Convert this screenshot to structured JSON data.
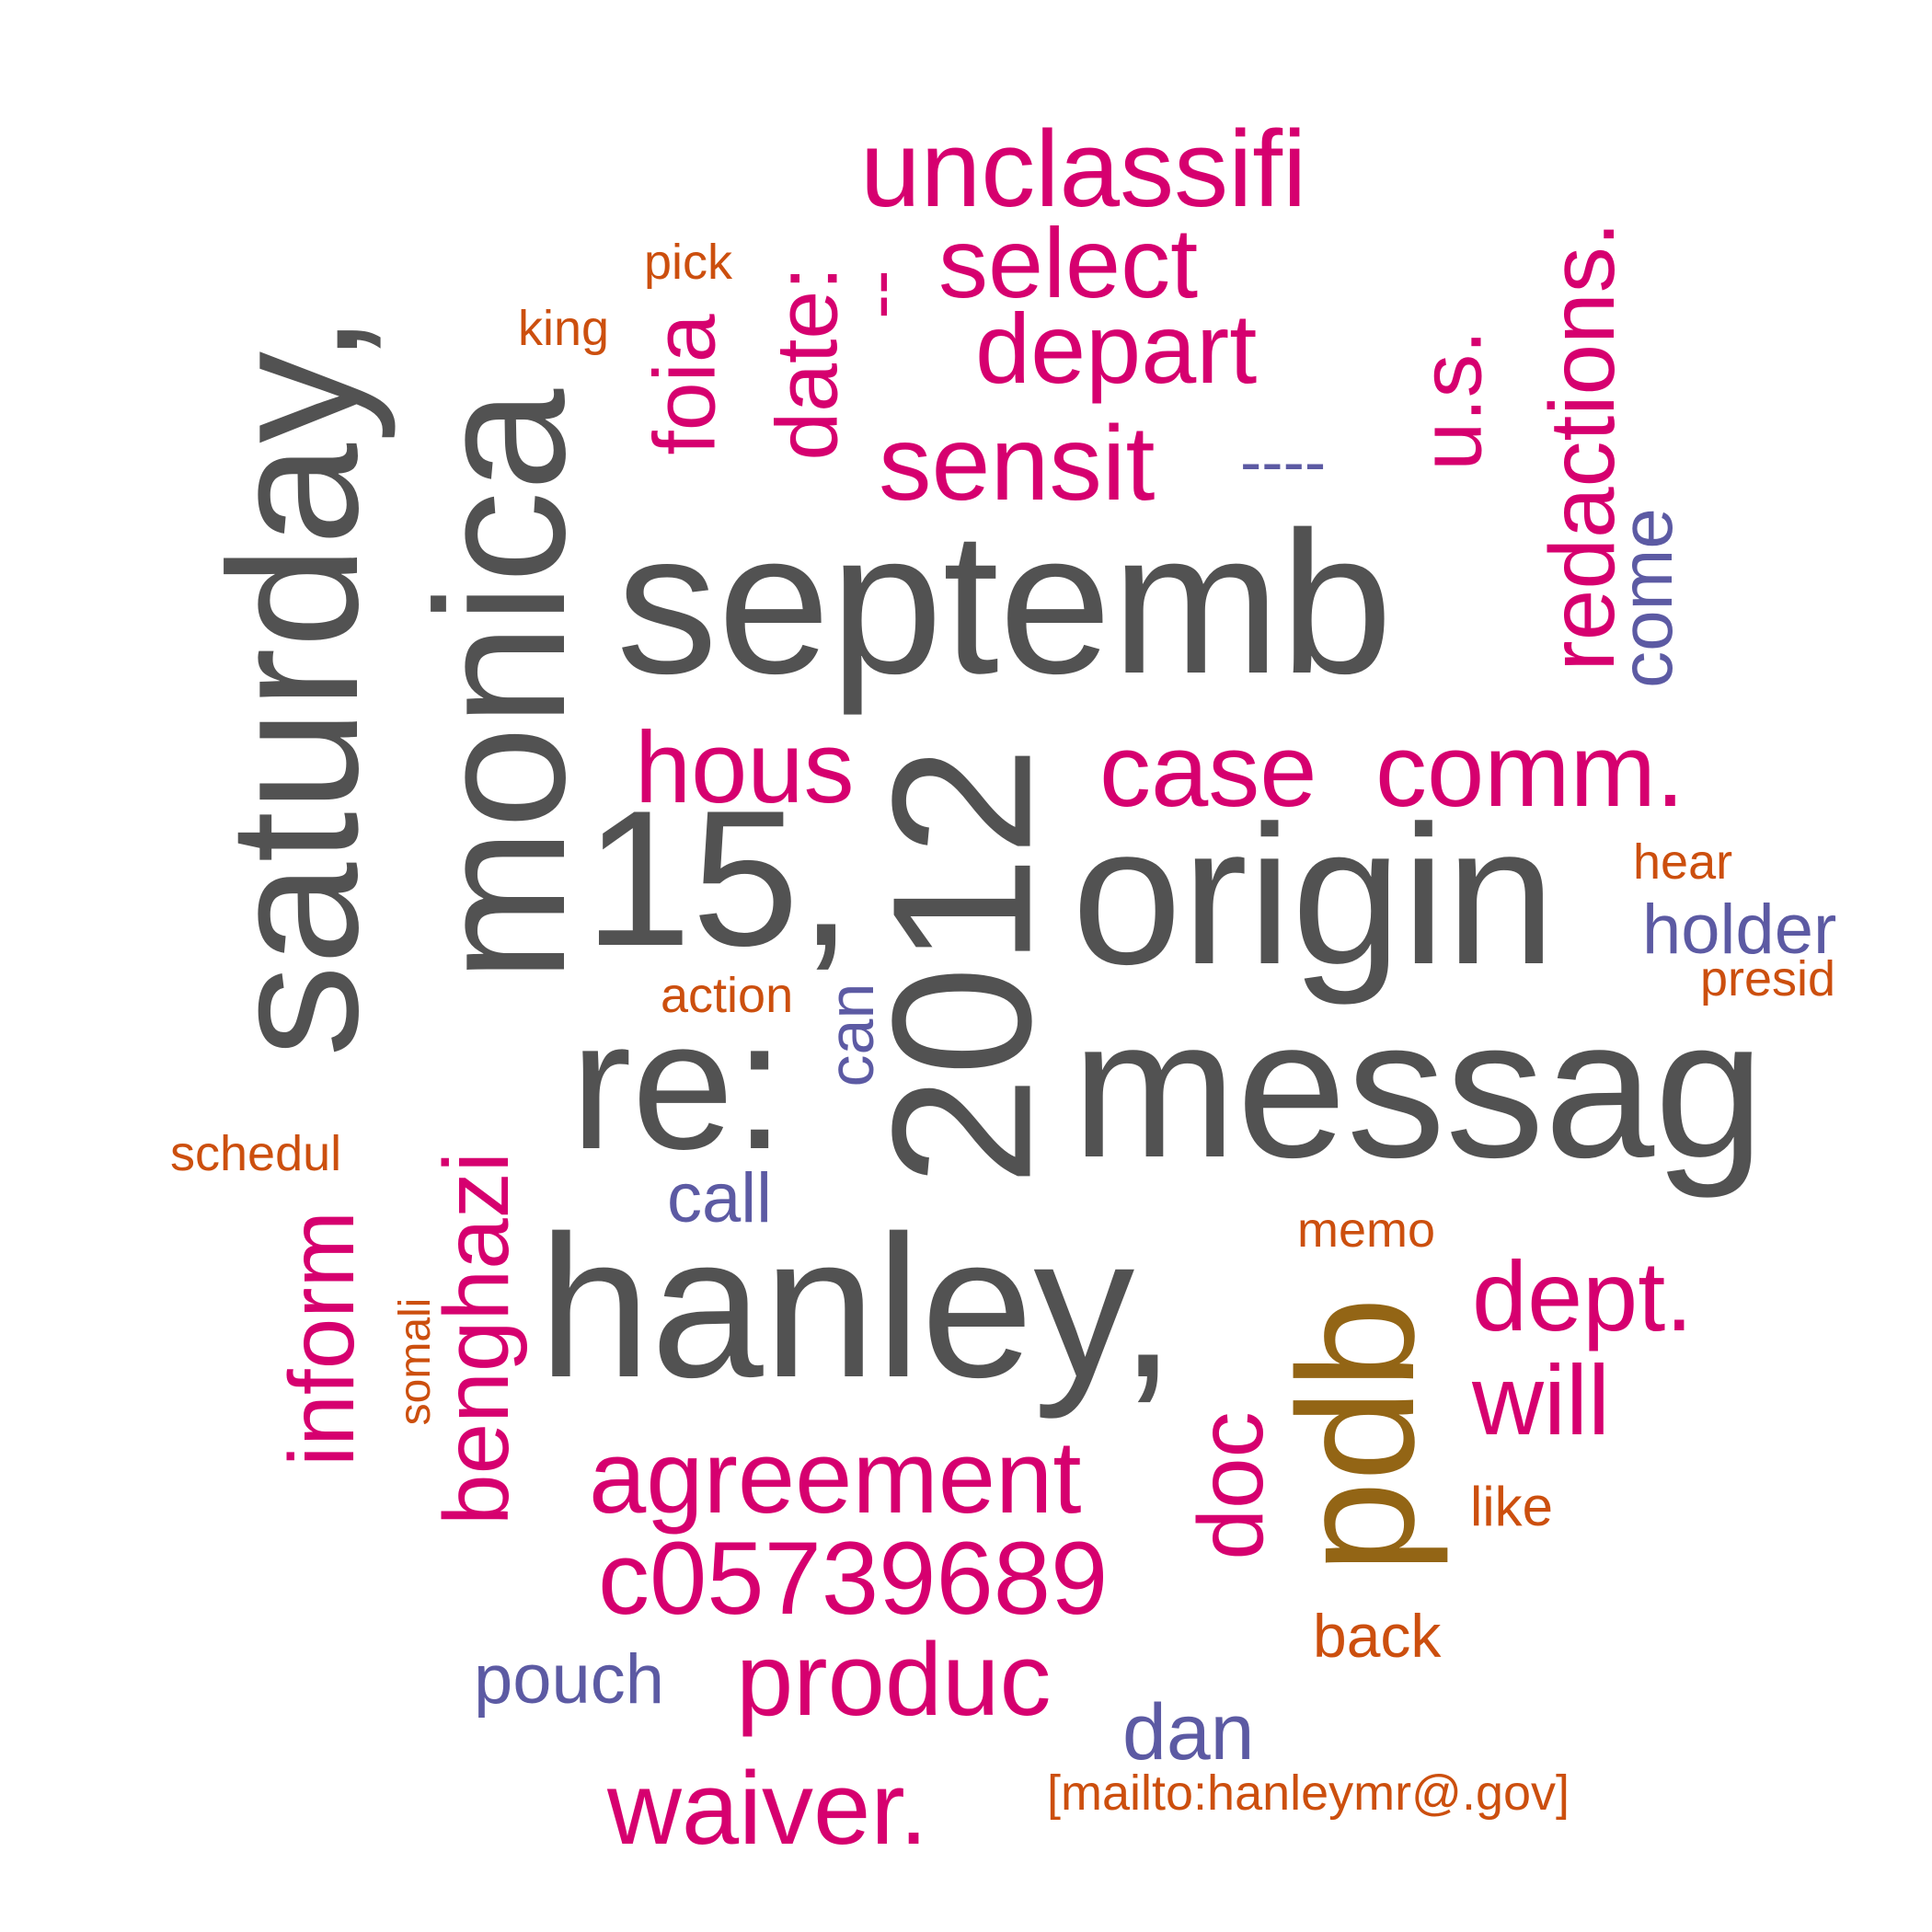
{
  "cloud": {
    "palette": {
      "gray": "#525252",
      "pink": "#d6006f",
      "gold": "#936515",
      "purple": "#5c5aa3",
      "orange": "#cc4f0e"
    },
    "words": {
      "septemb": "septemb",
      "origin": "origin",
      "messag": "messag",
      "hanley": "hanley,",
      "saturday": "saturday,",
      "monica": "monica",
      "y2012": "2012",
      "fifteen": "15,",
      "re": "re:",
      "pdb": "pdb",
      "unclassifi": "unclassifi",
      "select": "select",
      "depart": "depart",
      "sensit": "sensit",
      "hous": "hous",
      "case": "case",
      "comm": "comm.",
      "redactions": "redactions.",
      "us": "u.s.",
      "foia": "foia",
      "date": "date:",
      "dash_short": "--",
      "dash_long": "----",
      "come": "come",
      "benghazi": "benghazi",
      "inform": "inform",
      "agreement": "agreement",
      "c05739689": "c05739689",
      "produc": "produc",
      "waiver": "waiver.",
      "doc": "doc",
      "dept": "dept.",
      "will": "will",
      "dan": "dan",
      "pouch": "pouch",
      "call": "call",
      "can": "can",
      "holder": "holder",
      "hear": "hear",
      "presid": "presid",
      "action": "action",
      "schedul": "schedul",
      "somali": "somali",
      "memo": "memo",
      "like": "like",
      "back": "back",
      "mailto": "[mailto:hanleymr@.gov]",
      "pick": "pick",
      "king": "king"
    }
  }
}
